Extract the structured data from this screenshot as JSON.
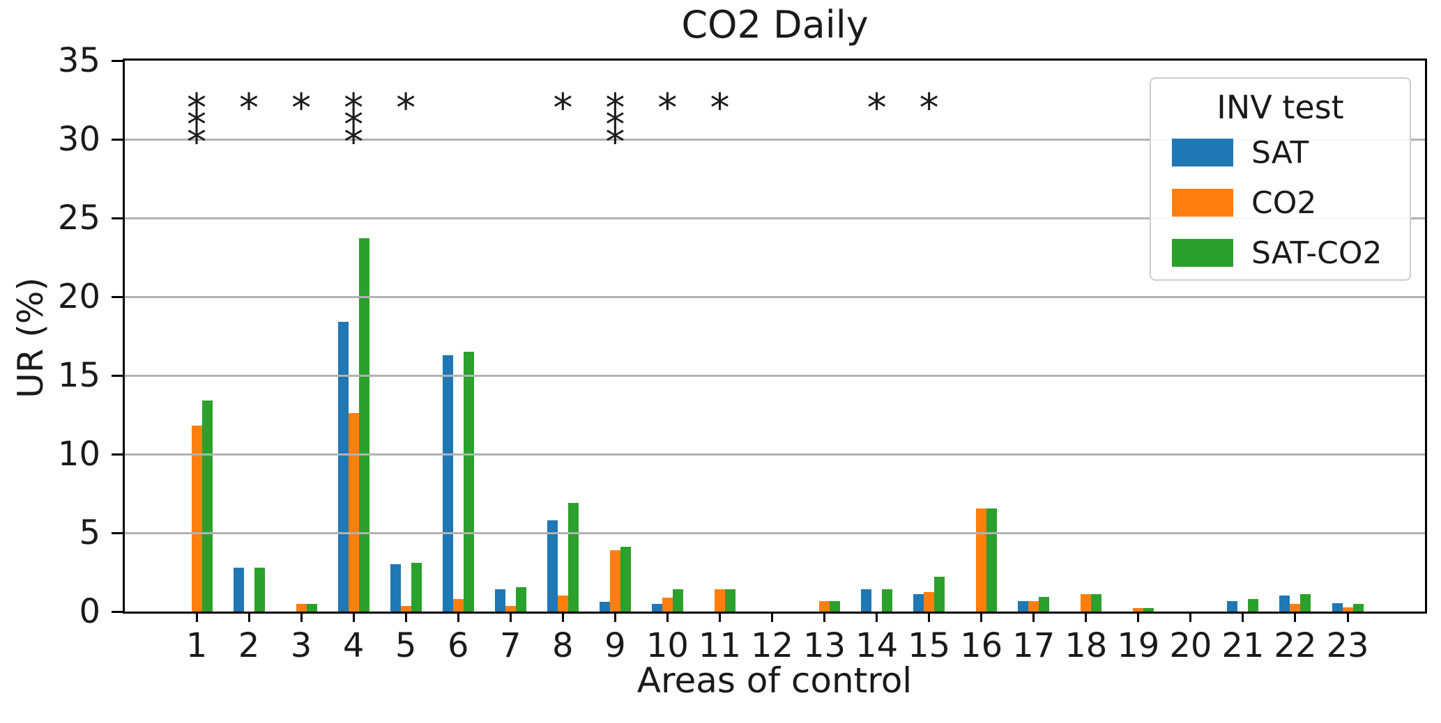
{
  "figure": {
    "title": "CO2 Daily",
    "xlabel": "Areas of control",
    "ylabel": "UR (%)"
  },
  "legend": {
    "title": "INV test",
    "entries": [
      {
        "label": "SAT",
        "color": "#1f77b4"
      },
      {
        "label": "CO2",
        "color": "#ff7f0e"
      },
      {
        "label": "SAT-CO2",
        "color": "#2ca02c"
      }
    ]
  },
  "chart_data": {
    "type": "bar",
    "title": "CO2 Daily",
    "xlabel": "Areas of control",
    "ylabel": "UR (%)",
    "categories": [
      "1",
      "2",
      "3",
      "4",
      "5",
      "6",
      "7",
      "8",
      "9",
      "10",
      "11",
      "12",
      "13",
      "14",
      "15",
      "16",
      "17",
      "18",
      "19",
      "20",
      "21",
      "22",
      "23"
    ],
    "series": [
      {
        "name": "SAT",
        "color": "#1f77b4",
        "values": [
          0,
          2.8,
          0,
          18.4,
          3.0,
          16.3,
          1.4,
          5.8,
          0.6,
          0.5,
          0,
          0,
          0,
          1.4,
          1.1,
          0,
          0.65,
          0,
          0,
          0,
          0.65,
          1.0,
          0.55
        ]
      },
      {
        "name": "CO2",
        "color": "#ff7f0e",
        "values": [
          11.8,
          0,
          0.5,
          12.6,
          0.35,
          0.8,
          0.35,
          1.0,
          3.9,
          0.9,
          1.4,
          0,
          0.65,
          0,
          1.25,
          6.55,
          0.65,
          1.1,
          0.2,
          0,
          0,
          0.5,
          0.25
        ]
      },
      {
        "name": "SAT-CO2",
        "color": "#2ca02c",
        "values": [
          13.4,
          2.8,
          0.5,
          23.7,
          3.1,
          16.5,
          1.55,
          6.9,
          4.1,
          1.4,
          1.4,
          0,
          0.65,
          1.4,
          2.2,
          6.55,
          0.95,
          1.1,
          0.2,
          0,
          0.8,
          1.1,
          0.5
        ]
      }
    ],
    "significance_stars": {
      "symbol": "*",
      "counts_per_category": [
        3,
        1,
        1,
        3,
        1,
        0,
        0,
        1,
        3,
        1,
        1,
        0,
        0,
        1,
        1,
        0,
        0,
        0,
        0,
        0,
        0,
        0,
        0
      ],
      "y_values_triple": [
        32.1,
        31.0,
        29.9
      ],
      "y_value_single": 32.1
    },
    "yticks": [
      0,
      5,
      10,
      15,
      20,
      25,
      30,
      35
    ],
    "ylim": [
      0,
      35
    ],
    "grid": "horizontal",
    "legend_position": "upper right",
    "legend_title": "INV test"
  },
  "colors": {
    "grid": "#b2b2b2",
    "spine": "#000000",
    "star": "#1c1c1c",
    "background": "#ffffff"
  }
}
